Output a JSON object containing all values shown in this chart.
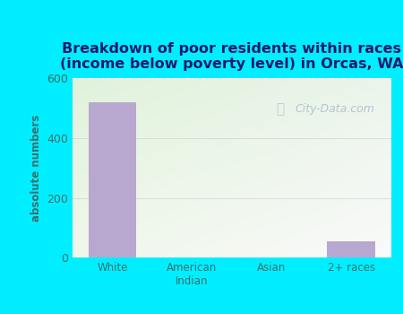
{
  "title": "Breakdown of poor residents within races\n(income below poverty level) in Orcas, WA",
  "categories": [
    "White",
    "American\nIndian",
    "Asian",
    "2+ races"
  ],
  "values": [
    520,
    0,
    0,
    55
  ],
  "bar_color": "#b8a8d0",
  "ylabel": "absolute numbers",
  "ylim": [
    0,
    600
  ],
  "yticks": [
    0,
    200,
    400,
    600
  ],
  "outer_bg": "#00eeff",
  "title_color": "#1a1a6e",
  "axis_label_color": "#3a7070",
  "tick_color": "#3a7070",
  "watermark": "City-Data.com",
  "bar_width": 0.6,
  "grid_color": "#cccccc",
  "plot_bg_topleft": "#e8f5e0",
  "plot_bg_topright": "#f0f8f8",
  "plot_bg_bottomleft": "#d8eec8",
  "plot_bg_bottomright": "#e8f5f0"
}
